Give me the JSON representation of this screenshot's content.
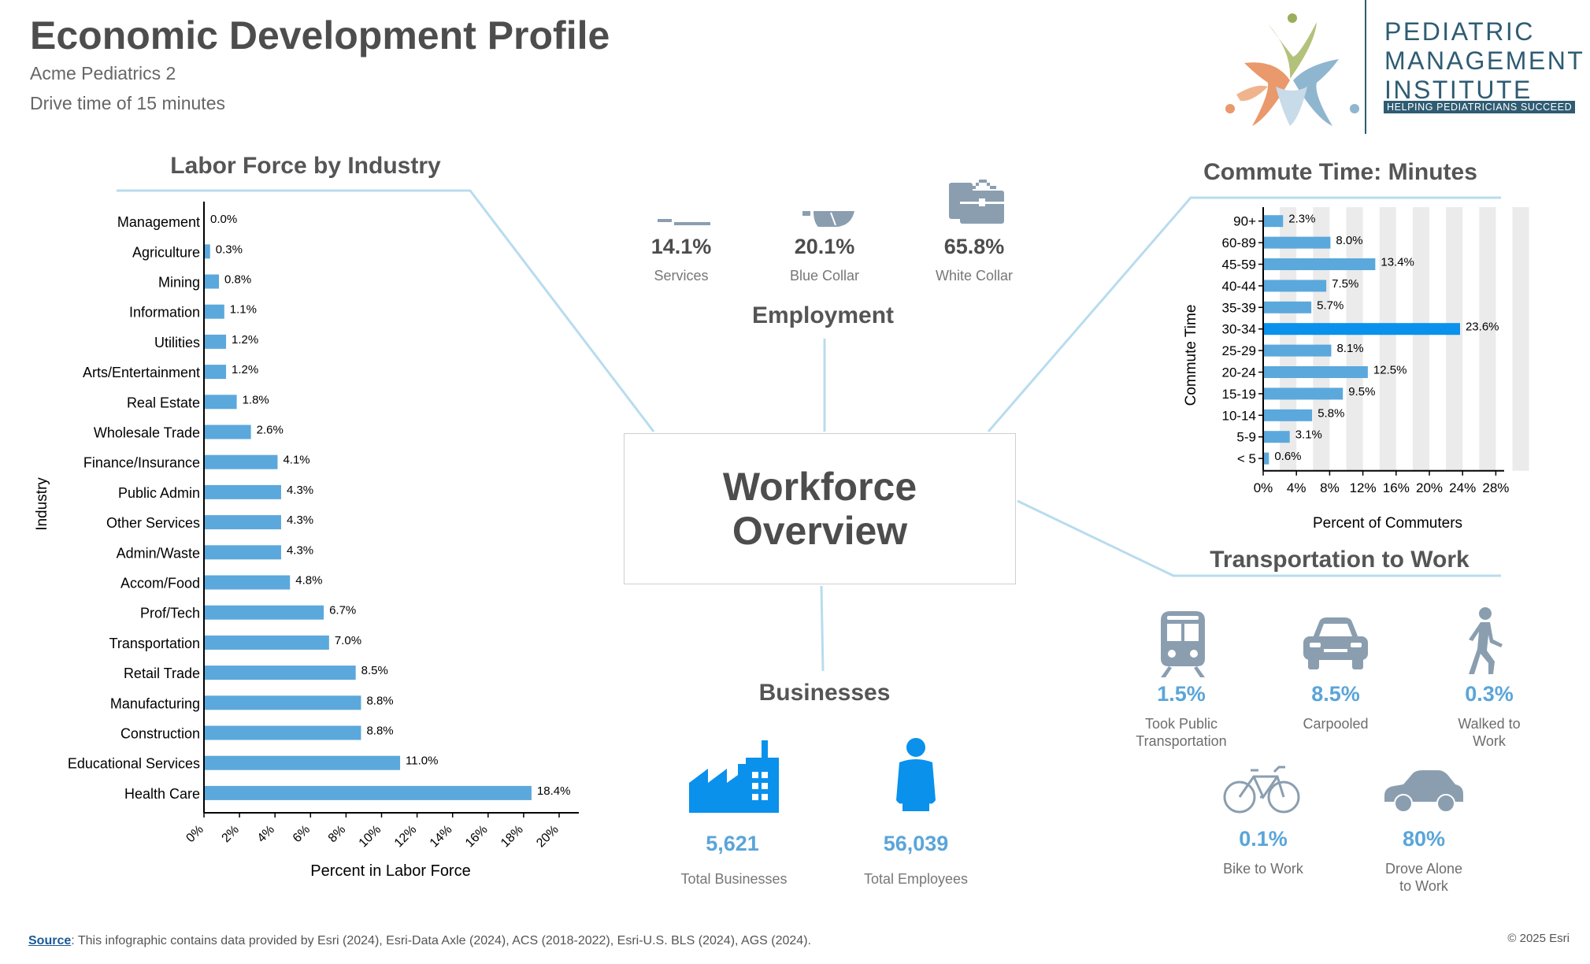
{
  "header": {
    "title": "Economic Development Profile",
    "subtitle": "Acme Pediatrics 2",
    "drive_time": "Drive time of 15 minutes"
  },
  "logo": {
    "line1": "PEDIATRIC",
    "line2": "MANAGEMENT",
    "line3": "INSTITUTE",
    "tagline": "HELPING PEDIATRICIANS SUCCEED",
    "colors": [
      "#9aae5c",
      "#e9996b",
      "#8fb6cf",
      "#2f5c73"
    ]
  },
  "center": {
    "title": "Workforce\nOverview"
  },
  "employment": {
    "title": "Employment",
    "items": [
      {
        "value": "14.1%",
        "label": "Services",
        "icon": "services-icon"
      },
      {
        "value": "20.1%",
        "label": "Blue Collar",
        "icon": "hard-hat-icon"
      },
      {
        "value": "65.8%",
        "label": "White Collar",
        "icon": "briefcase-icon"
      }
    ]
  },
  "businesses": {
    "title": "Businesses",
    "items": [
      {
        "value": "5,621",
        "label": "Total Businesses",
        "icon": "factory-icon"
      },
      {
        "value": "56,039",
        "label": "Total Employees",
        "icon": "person-icon"
      }
    ]
  },
  "transportation": {
    "title": "Transportation to Work",
    "items": [
      {
        "value": "1.5%",
        "label": "Took Public\nTransportation",
        "icon": "train-icon"
      },
      {
        "value": "8.5%",
        "label": "Carpooled",
        "icon": "car-front-icon"
      },
      {
        "value": "0.3%",
        "label": "Walked to\nWork",
        "icon": "walking-person-icon"
      },
      {
        "value": "0.1%",
        "label": "Bike to Work",
        "icon": "bicycle-icon"
      },
      {
        "value": "80%",
        "label": "Drove Alone\nto Work",
        "icon": "car-side-icon"
      }
    ]
  },
  "footer": {
    "source_link": "Source",
    "source_text": ": This infographic contains data provided by Esri (2024), Esri-Data Axle (2024), ACS (2018-2022), Esri-U.S. BLS (2024), AGS (2024).",
    "copyright": "© 2025 Esri"
  },
  "colors": {
    "bar": "#5ba8dc",
    "highlight_bar": "#0a91ec",
    "icon_gray": "#8a9eb0",
    "value_blue": "#5aa5d9",
    "connector": "#b8dcee",
    "band": "#ebebeb"
  },
  "chart_data": [
    {
      "type": "bar",
      "orientation": "horizontal",
      "title": "Labor Force by Industry",
      "xlabel": "Percent in Labor Force",
      "ylabel": "Industry",
      "xlim": [
        0,
        20
      ],
      "xticks": [
        "0%",
        "2%",
        "4%",
        "6%",
        "8%",
        "10%",
        "12%",
        "14%",
        "16%",
        "18%",
        "20%"
      ],
      "categories": [
        "Management",
        "Agriculture",
        "Mining",
        "Information",
        "Utilities",
        "Arts/Entertainment",
        "Real Estate",
        "Wholesale Trade",
        "Finance/Insurance",
        "Public Admin",
        "Other Services",
        "Admin/Waste",
        "Accom/Food",
        "Prof/Tech",
        "Transportation",
        "Retail Trade",
        "Manufacturing",
        "Construction",
        "Educational Services",
        "Health Care"
      ],
      "values": [
        0.0,
        0.3,
        0.8,
        1.1,
        1.2,
        1.2,
        1.8,
        2.6,
        4.1,
        4.3,
        4.3,
        4.3,
        4.8,
        6.7,
        7.0,
        8.5,
        8.8,
        8.8,
        11.0,
        18.4
      ],
      "labels": [
        "0.0%",
        "0.3%",
        "0.8%",
        "1.1%",
        "1.2%",
        "1.2%",
        "1.8%",
        "2.6%",
        "4.1%",
        "4.3%",
        "4.3%",
        "4.3%",
        "4.8%",
        "6.7%",
        "7.0%",
        "8.5%",
        "8.8%",
        "8.8%",
        "11.0%",
        "18.4%"
      ]
    },
    {
      "type": "bar",
      "orientation": "horizontal",
      "title": "Commute Time: Minutes",
      "xlabel": "Percent of Commuters",
      "ylabel": "Commute Time",
      "xlim": [
        0,
        29
      ],
      "xticks": [
        "0%",
        "4%",
        "8%",
        "12%",
        "16%",
        "20%",
        "24%",
        "28%"
      ],
      "grid": "alternating vertical bands",
      "categories": [
        "90+",
        "60-89",
        "45-59",
        "40-44",
        "35-39",
        "30-34",
        "25-29",
        "20-24",
        "15-19",
        "10-14",
        "5-9",
        "< 5"
      ],
      "values": [
        2.3,
        8.0,
        13.4,
        7.5,
        5.7,
        23.6,
        8.1,
        12.5,
        9.5,
        5.8,
        3.1,
        0.6
      ],
      "labels": [
        "2.3%",
        "8.0%",
        "13.4%",
        "7.5%",
        "5.7%",
        "23.6%",
        "8.1%",
        "12.5%",
        "9.5%",
        "5.8%",
        "3.1%",
        "0.6%"
      ]
    }
  ]
}
